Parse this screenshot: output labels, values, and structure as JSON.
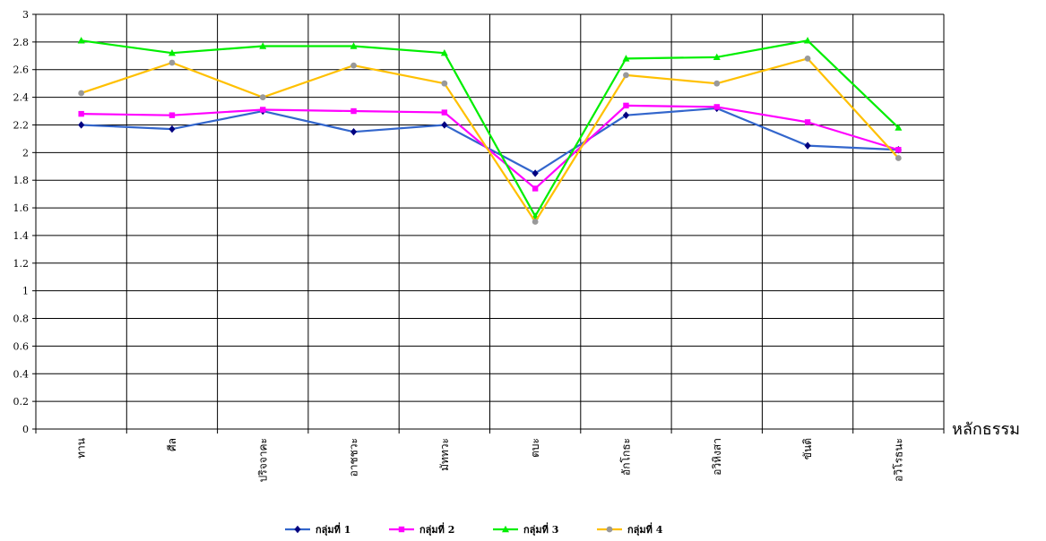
{
  "chart_data": {
    "type": "line",
    "xlabel": "หลักธรรม",
    "ylabel": "",
    "ylim": [
      0,
      3
    ],
    "ytick_step": 0.2,
    "y_tick_labels": [
      "0",
      "0.2",
      "0.4",
      "0.6",
      "0.8",
      "1",
      "1.2",
      "1.4",
      "1.6",
      "1.8",
      "2",
      "2.2",
      "2.4",
      "2.6",
      "2.8",
      "3"
    ],
    "grid": true,
    "legend_position": "bottom",
    "categories": [
      "ทาน",
      "ศีล",
      "ปริจจาคะ",
      "อาชชวะ",
      "มัททวะ",
      "ตบะ",
      "อักโกธะ",
      "อวิหิงสา",
      "ขันติ",
      "อวิโรธนะ"
    ],
    "series": [
      {
        "name": "กลุ่มที่ 1",
        "color": "#3366cc",
        "marker": "diamond",
        "marker_color": "#000080",
        "values": [
          2.2,
          2.17,
          2.3,
          2.15,
          2.2,
          1.85,
          2.27,
          2.32,
          2.05,
          2.02
        ]
      },
      {
        "name": "กลุ่มที่ 2",
        "color": "#ff00ff",
        "marker": "square",
        "marker_color": "#ff00ff",
        "values": [
          2.28,
          2.27,
          2.31,
          2.3,
          2.29,
          1.74,
          2.34,
          2.33,
          2.22,
          2.02
        ]
      },
      {
        "name": "กลุ่มที่ 3",
        "color": "#00ee00",
        "marker": "triangle",
        "marker_color": "#00ee00",
        "values": [
          2.81,
          2.72,
          2.77,
          2.77,
          2.72,
          1.54,
          2.68,
          2.69,
          2.81,
          2.18
        ]
      },
      {
        "name": "กลุ่มที่ 4",
        "color": "#ffc000",
        "marker": "circle",
        "marker_color": "#999999",
        "values": [
          2.43,
          2.65,
          2.4,
          2.63,
          2.5,
          1.5,
          2.56,
          2.5,
          2.68,
          1.96
        ]
      }
    ]
  }
}
